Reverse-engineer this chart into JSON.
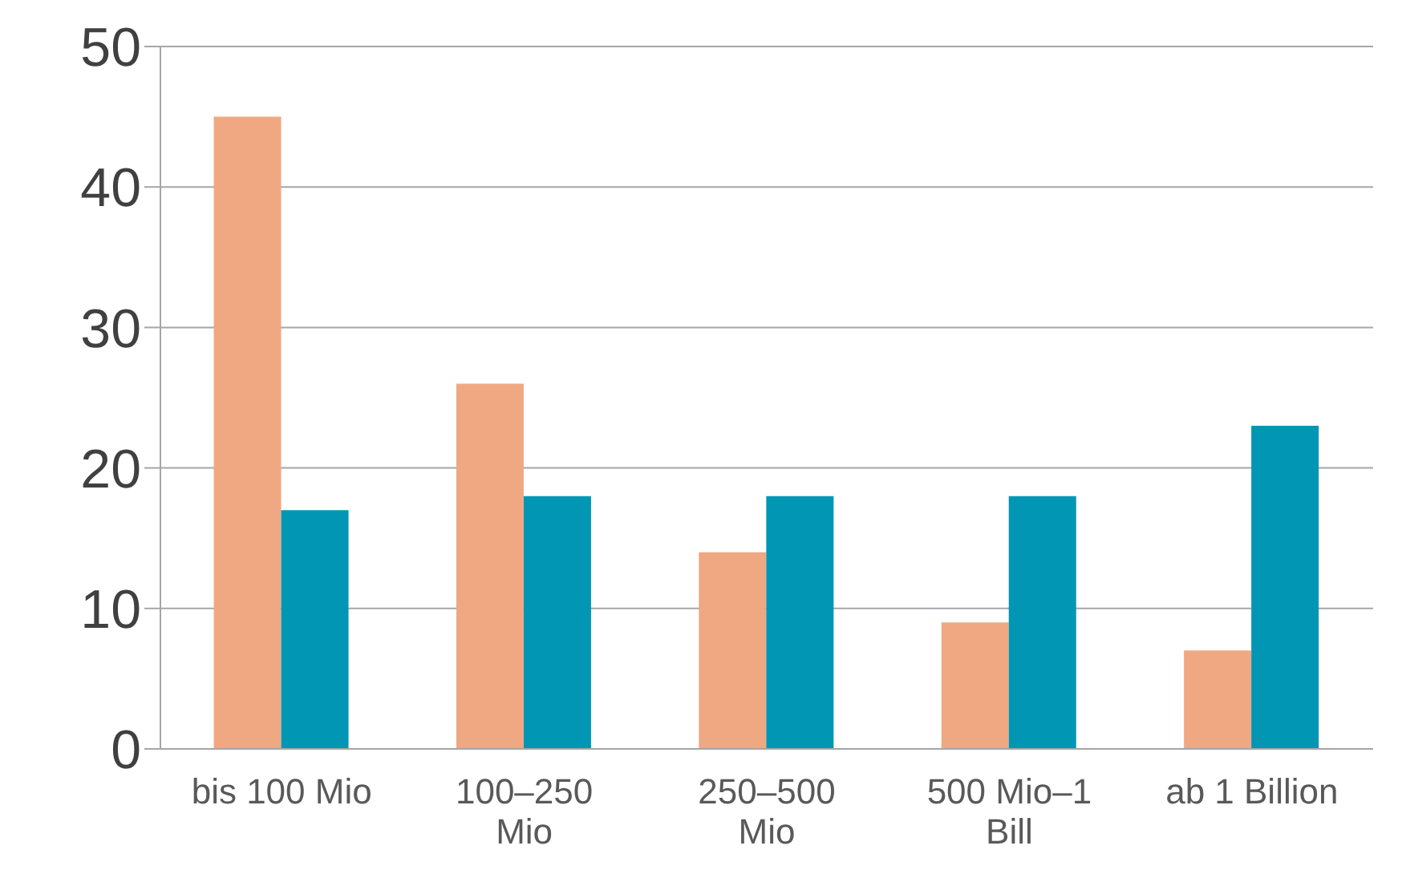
{
  "chart_data": {
    "type": "bar",
    "categories": [
      "bis 100 Mio",
      "100–250 Mio",
      "250–500 Mio",
      "500 Mio–1 Bill",
      "ab 1 Billion"
    ],
    "series": [
      {
        "color": "#f0a882",
        "values": [
          45,
          26,
          14,
          9,
          7
        ]
      },
      {
        "color": "#0096b4",
        "values": [
          17,
          18,
          18,
          18,
          23
        ]
      }
    ],
    "ylim": [
      0,
      50
    ],
    "yticks": [
      0,
      10,
      20,
      30,
      40,
      50
    ],
    "grid": "y",
    "legend": false
  }
}
